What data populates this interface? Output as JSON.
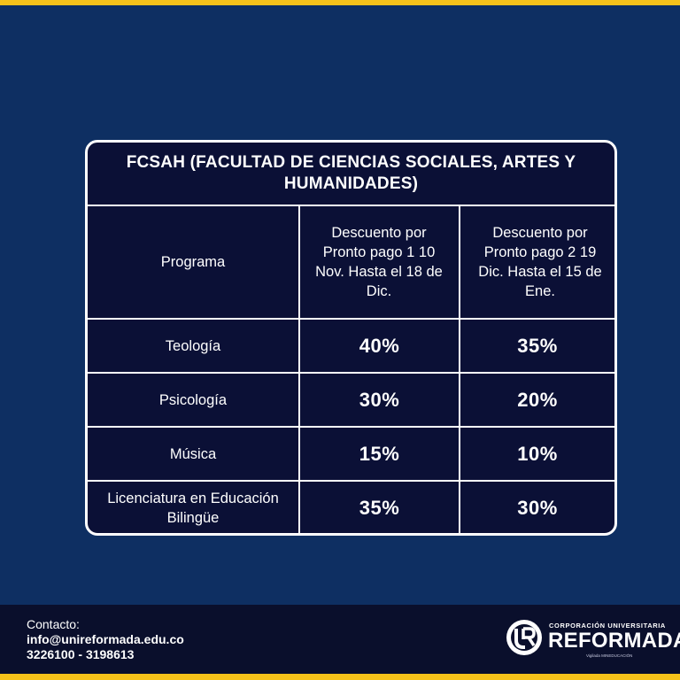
{
  "table": {
    "title": "FCSAH (FACULTAD DE CIENCIAS SOCIALES, ARTES Y HUMANIDADES)",
    "headers": {
      "program": "Programa",
      "discount1": "Descuento por Pronto pago 1 10 Nov. Hasta el 18 de Dic.",
      "discount2": "Descuento por Pronto pago 2 19 Dic. Hasta el 15 de Ene."
    },
    "rows": [
      {
        "program": "Teología",
        "discount1": "40%",
        "discount2": "35%"
      },
      {
        "program": "Psicología",
        "discount1": "30%",
        "discount2": "20%"
      },
      {
        "program": "Música",
        "discount1": "15%",
        "discount2": "10%"
      },
      {
        "program": "Licenciatura en Educación Bilingüe",
        "discount1": "35%",
        "discount2": "30%"
      }
    ]
  },
  "footer": {
    "contact_label": "Contacto:",
    "email": "info@unireformada.edu.co",
    "phones": "3226100 - 3198613"
  },
  "logo": {
    "top_text": "CORPORACIÓN UNIVERSITARIA",
    "name": "REFORMADA",
    "sub_text": "Vigilada MINEDUCACIÓN"
  },
  "colors": {
    "background": "#0e2f62",
    "accent": "#f6c21a",
    "table_bg": "#0b1036"
  }
}
